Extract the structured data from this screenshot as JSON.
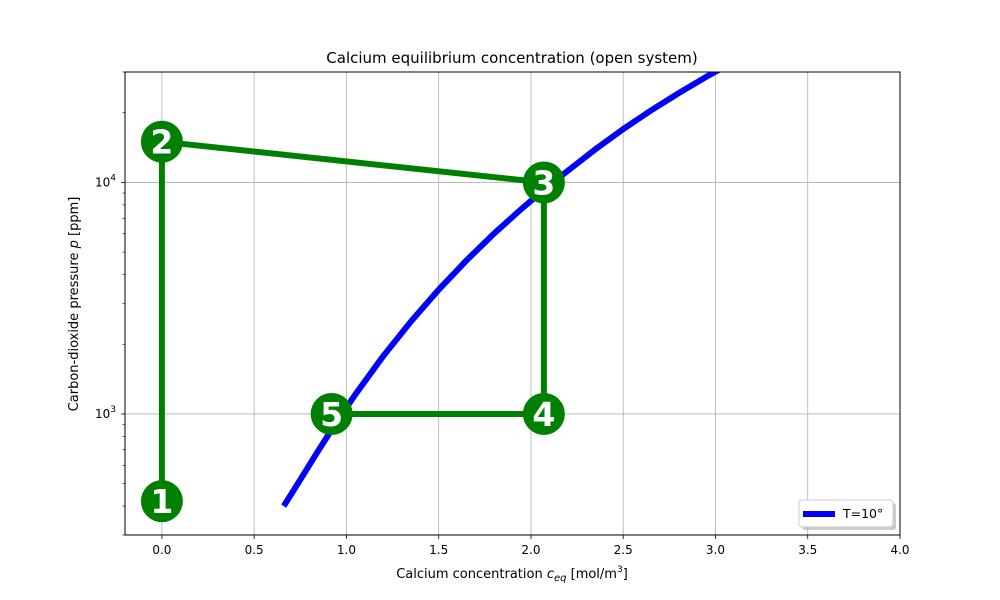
{
  "chart_data": {
    "type": "line",
    "title": "Calcium equilibrium concentration (open system)",
    "xlabel": "Calcium concentration c_eq [mol/m³]",
    "xlabel_parts": {
      "main": "Calcium concentration ",
      "var": "c",
      "sub": "eq",
      "unit_pre": " [mol/m",
      "unit_sup": "3",
      "unit_post": "]"
    },
    "ylabel": "Carbon-dioxide pressure p [ppm]",
    "ylabel_parts": {
      "main": "Carbon-dioxide pressure ",
      "var": "p",
      "unit": " [ppm]"
    },
    "x_range": [
      -0.2,
      4.0
    ],
    "y_range": [
      300,
      30000
    ],
    "y_scale": "log",
    "x_ticks": [
      "0.0",
      "0.5",
      "1.0",
      "1.5",
      "2.0",
      "2.5",
      "3.0",
      "3.5",
      "4.0"
    ],
    "x_tick_values": [
      0,
      0.5,
      1.0,
      1.5,
      2.0,
      2.5,
      3.0,
      3.5,
      4.0
    ],
    "y_ticks": [
      {
        "value": 1000,
        "base": "10",
        "exp": "3"
      },
      {
        "value": 10000,
        "base": "10",
        "exp": "4"
      }
    ],
    "grid": true,
    "legend_position": "lower-right",
    "series": [
      {
        "name": "T=10°",
        "color": "#0000ff",
        "x": [
          0.66,
          0.75,
          0.85,
          0.95,
          1.05,
          1.2,
          1.35,
          1.5,
          1.65,
          1.8,
          1.95,
          2.07,
          2.2,
          2.35,
          2.5,
          2.65,
          2.8,
          2.95,
          3.1
        ],
        "y": [
          400,
          520,
          700,
          930,
          1220,
          1780,
          2510,
          3440,
          4600,
          6010,
          7700,
          9300,
          11240,
          13920,
          17000,
          20450,
          24300,
          28590,
          33300
        ]
      }
    ],
    "path": {
      "color": "#008000",
      "points": [
        {
          "label": "1",
          "x": 0.0,
          "y": 420
        },
        {
          "label": "2",
          "x": 0.0,
          "y": 15000
        },
        {
          "label": "3",
          "x": 2.07,
          "y": 10000
        },
        {
          "label": "4",
          "x": 2.07,
          "y": 1000
        },
        {
          "label": "5",
          "x": 0.92,
          "y": 1000
        }
      ]
    }
  }
}
